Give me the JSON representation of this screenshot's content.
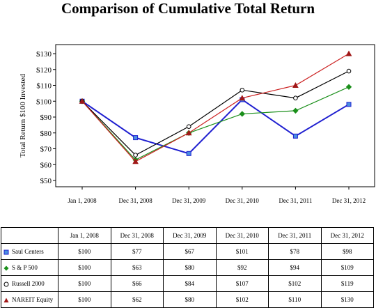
{
  "title": "Comparison of Cumulative Total Return",
  "chart_data": {
    "type": "line",
    "title": "Comparison of Cumulative Total Return",
    "ylabel": "Total Return $100 Invested",
    "xlabel": "",
    "categories": [
      "Jan 1, 2008",
      "Dec 31, 2008",
      "Dec 31, 2009",
      "Dec 31, 2010",
      "Dec 31, 2011",
      "Dec 31, 2012"
    ],
    "ylim": [
      50,
      130
    ],
    "yticks": [
      50,
      60,
      70,
      80,
      90,
      100,
      110,
      120,
      130
    ],
    "ytick_labels": [
      "$50",
      "$60",
      "$70",
      "$80",
      "$90",
      "$100",
      "$110",
      "$120",
      "$130"
    ],
    "grid": false,
    "series": [
      {
        "name": "Saul Centers",
        "color": "#1f1fd0",
        "marker": "square",
        "values": [
          100,
          77,
          67,
          101,
          78,
          98
        ]
      },
      {
        "name": "S & P 500",
        "color": "#1a8f1a",
        "marker": "diamond",
        "values": [
          100,
          63,
          80,
          92,
          94,
          109
        ]
      },
      {
        "name": "Russell 2000",
        "color": "#000000",
        "marker": "circle",
        "values": [
          100,
          66,
          84,
          107,
          102,
          119
        ]
      },
      {
        "name": "NAREIT Equity",
        "color": "#cc2222",
        "marker": "triangle",
        "values": [
          100,
          62,
          80,
          102,
          110,
          130
        ]
      }
    ]
  },
  "table": {
    "headers": [
      "",
      "Jan 1, 2008",
      "Dec 31, 2008",
      "Dec 31, 2009",
      "Dec 31, 2010",
      "Dec 31, 2011",
      "Dec 31, 2012"
    ],
    "rows": [
      {
        "label": "Saul Centers",
        "cells": [
          "$100",
          "$77",
          "$67",
          "$101",
          "$78",
          "$98"
        ]
      },
      {
        "label": "S & P 500",
        "cells": [
          "$100",
          "$63",
          "$80",
          "$92",
          "$94",
          "$109"
        ]
      },
      {
        "label": "Russell 2000",
        "cells": [
          "$100",
          "$66",
          "$84",
          "$107",
          "$102",
          "$119"
        ]
      },
      {
        "label": "NAREIT Equity",
        "cells": [
          "$100",
          "$62",
          "$80",
          "$102",
          "$110",
          "$130"
        ]
      }
    ]
  }
}
